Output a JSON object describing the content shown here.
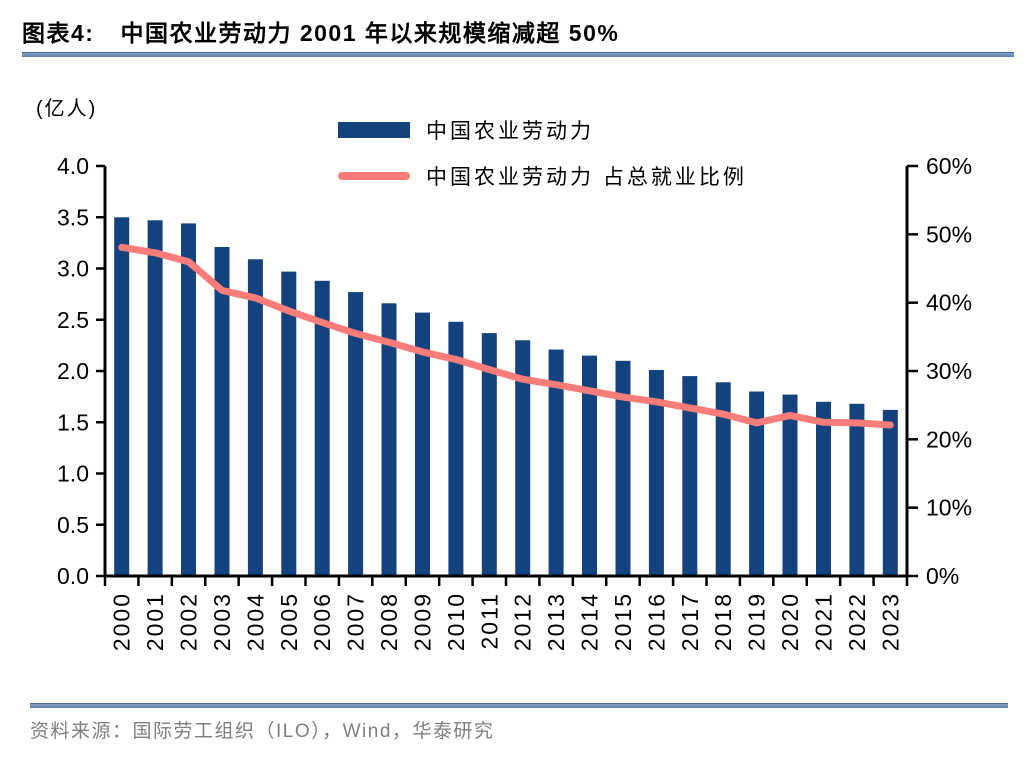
{
  "header": {
    "figure_label": "图表4:",
    "title": "中国农业劳动力 2001 年以来规模缩减超 50%"
  },
  "chart_data": {
    "type": "bar+line",
    "unit_label": "(亿人)",
    "categories": [
      "2000",
      "2001",
      "2002",
      "2003",
      "2004",
      "2005",
      "2006",
      "2007",
      "2008",
      "2009",
      "2010",
      "2011",
      "2012",
      "2013",
      "2014",
      "2015",
      "2016",
      "2017",
      "2018",
      "2019",
      "2020",
      "2021",
      "2022",
      "2023"
    ],
    "series": [
      {
        "name": "中国农业劳动力",
        "type": "bar",
        "axis": "left",
        "color": "#14427e",
        "values": [
          3.5,
          3.47,
          3.44,
          3.21,
          3.09,
          2.97,
          2.88,
          2.77,
          2.66,
          2.57,
          2.48,
          2.37,
          2.3,
          2.21,
          2.15,
          2.1,
          2.01,
          1.95,
          1.89,
          1.8,
          1.77,
          1.7,
          1.68,
          1.62
        ]
      },
      {
        "name": "中国农业劳动力 占总就业比例",
        "type": "line",
        "axis": "right",
        "color": "#fa7d7a",
        "values_pct": [
          48.1,
          47.3,
          46.0,
          41.8,
          40.7,
          38.8,
          37.1,
          35.5,
          34.2,
          32.8,
          31.7,
          30.2,
          28.8,
          28.0,
          27.1,
          26.2,
          25.5,
          24.6,
          23.7,
          22.4,
          23.5,
          22.5,
          22.4,
          22.1
        ]
      }
    ],
    "left_axis": {
      "ticks": [
        "4.0",
        "3.5",
        "3.0",
        "2.5",
        "2.0",
        "1.5",
        "1.0",
        "0.5",
        "0.0"
      ],
      "min": 0,
      "max": 4
    },
    "right_axis": {
      "ticks": [
        "60%",
        "50%",
        "40%",
        "30%",
        "20%",
        "10%",
        "0%"
      ],
      "min": 0,
      "max": 60
    },
    "legend_position": "top-center",
    "grid": false,
    "axis_color": "#000000"
  },
  "footer": {
    "source": "资料来源：国际劳工组织（ILO），Wind，华泰研究"
  }
}
